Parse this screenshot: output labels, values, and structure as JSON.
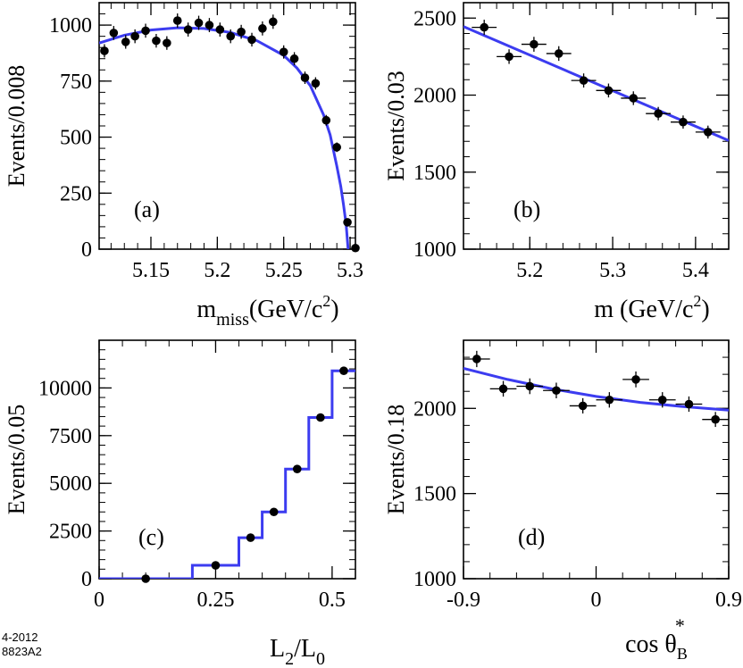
{
  "figure_code": {
    "line1": "4-2012",
    "line2": "8823A2"
  },
  "colors": {
    "fit": "#3c3cf0",
    "points": "#000000",
    "axes": "#000000"
  },
  "chart_data": [
    {
      "id": "a",
      "type": "scatter",
      "panel_label": "(a)",
      "title": "",
      "ylabel": "Events/0.008",
      "xlabel": {
        "main": "m",
        "sub": "miss",
        "rest": "(GeV/c",
        "sup": "2",
        "end": ")"
      },
      "xlim": [
        5.111,
        5.304
      ],
      "ylim": [
        0,
        1100
      ],
      "xticks": [
        5.15,
        5.2,
        5.25,
        5.3
      ],
      "xtick_labels": [
        "5.15",
        "5.2",
        "5.25",
        "5.3"
      ],
      "yticks": [
        0,
        250,
        500,
        750,
        1000
      ],
      "ytick_labels": [
        "0",
        "250",
        "500",
        "750",
        "1000"
      ],
      "x": [
        5.115,
        5.122,
        5.131,
        5.138,
        5.146,
        5.154,
        5.162,
        5.17,
        5.178,
        5.186,
        5.194,
        5.202,
        5.21,
        5.218,
        5.226,
        5.234,
        5.242,
        5.25,
        5.258,
        5.266,
        5.274,
        5.282,
        5.29,
        5.298,
        5.304
      ],
      "y": [
        885,
        965,
        925,
        950,
        975,
        930,
        920,
        1020,
        980,
        1010,
        1000,
        980,
        950,
        970,
        935,
        985,
        1015,
        880,
        850,
        765,
        740,
        575,
        455,
        120,
        5
      ],
      "fit": {
        "x": [
          5.111,
          5.13,
          5.15,
          5.17,
          5.19,
          5.21,
          5.23,
          5.25,
          5.26,
          5.27,
          5.28,
          5.285,
          5.29,
          5.293,
          5.295,
          5.297,
          5.2985
        ],
        "y": [
          920,
          955,
          978,
          988,
          985,
          967,
          930,
          865,
          808,
          730,
          600,
          510,
          370,
          280,
          200,
          110,
          0
        ]
      }
    },
    {
      "id": "b",
      "type": "scatter",
      "panel_label": "(b)",
      "title": "",
      "ylabel": "Events/0.03",
      "xlabel": {
        "main": "m",
        "sub": "",
        "rest": " (GeV/c",
        "sup": "2",
        "end": ")"
      },
      "xlim": [
        5.12,
        5.44
      ],
      "ylim": [
        1000,
        2600
      ],
      "xticks": [
        5.2,
        5.3,
        5.4
      ],
      "xtick_labels": [
        "5.2",
        "5.3",
        "5.4"
      ],
      "yticks": [
        1000,
        1500,
        2000,
        2500
      ],
      "ytick_labels": [
        "1000",
        "1500",
        "2000",
        "2500"
      ],
      "x": [
        5.145,
        5.175,
        5.205,
        5.235,
        5.265,
        5.295,
        5.325,
        5.355,
        5.385,
        5.415
      ],
      "y": [
        2440,
        2250,
        2330,
        2270,
        2095,
        2030,
        1980,
        1880,
        1825,
        1760
      ],
      "fit": {
        "x": [
          5.12,
          5.44
        ],
        "y": [
          2445,
          1705
        ]
      }
    },
    {
      "id": "c",
      "type": "scatter",
      "panel_label": "(c)",
      "title": "",
      "ylabel": "Events/0.05",
      "xlabel": {
        "main": "L",
        "sub": "2",
        "rest": "/L",
        "sub2": "0"
      },
      "xlim": [
        0,
        0.55
      ],
      "ylim": [
        0,
        12500
      ],
      "xticks": [
        0,
        0.25,
        0.5
      ],
      "xtick_labels": [
        "0",
        "0.25",
        "0.5"
      ],
      "yticks": [
        0,
        2500,
        5000,
        7500,
        10000
      ],
      "ytick_labels": [
        "0",
        "2500",
        "5000",
        "7500",
        "10000"
      ],
      "x": [
        0.1,
        0.25,
        0.325,
        0.375,
        0.425,
        0.475,
        0.525
      ],
      "y": [
        0,
        700,
        2150,
        3500,
        5750,
        8450,
        10900
      ],
      "fit": {
        "x": [
          0,
          0.2,
          0.2,
          0.3,
          0.3,
          0.35,
          0.35,
          0.4,
          0.4,
          0.45,
          0.45,
          0.5,
          0.5,
          0.55
        ],
        "y": [
          0,
          0,
          700,
          700,
          2150,
          2150,
          3500,
          3500,
          5750,
          5750,
          8450,
          8450,
          10900,
          10900
        ]
      }
    },
    {
      "id": "d",
      "type": "scatter",
      "panel_label": "(d)",
      "title": "",
      "ylabel": "Events/0.18",
      "xlabel": {
        "main": "cos θ",
        "sub": "B",
        "sup": "*"
      },
      "xlim": [
        -0.9,
        0.9
      ],
      "ylim": [
        1000,
        2400
      ],
      "xticks": [
        -0.9,
        0,
        0.9
      ],
      "xtick_labels": [
        "-0.9",
        "0",
        "0.9"
      ],
      "yticks": [
        1000,
        1500,
        2000
      ],
      "ytick_labels": [
        "1000",
        "1500",
        "2000"
      ],
      "x": [
        -0.81,
        -0.63,
        -0.45,
        -0.27,
        -0.09,
        0.09,
        0.27,
        0.45,
        0.63,
        0.81
      ],
      "y": [
        2290,
        2115,
        2130,
        2105,
        2015,
        2050,
        2170,
        2050,
        2025,
        1935
      ],
      "fit": {
        "x": [
          -0.9,
          -0.6,
          -0.3,
          0,
          0.3,
          0.6,
          0.9
        ],
        "y": [
          2235,
          2170,
          2115,
          2070,
          2035,
          2010,
          1990
        ]
      }
    }
  ]
}
